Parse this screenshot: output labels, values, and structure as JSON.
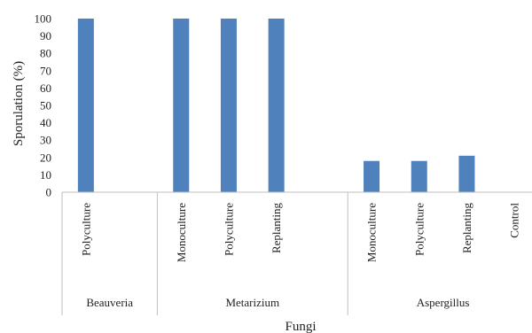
{
  "chart_data": {
    "type": "bar",
    "title": "",
    "xlabel": "Fungi",
    "ylabel": "Sporulation (%)",
    "ylim": [
      0,
      100
    ],
    "yticks": [
      0,
      10,
      20,
      30,
      40,
      50,
      60,
      70,
      80,
      90,
      100
    ],
    "grid": false,
    "legend": "none",
    "bar_color": "#4f81bd",
    "groups": [
      "Beauveria",
      "Metarizium",
      "Aspergillus"
    ],
    "categories": [
      {
        "group": "Beauveria",
        "label": "Polyculture"
      },
      {
        "group": "Beauveria",
        "label": ""
      },
      {
        "group": "Metarizium",
        "label": "Monoculture"
      },
      {
        "group": "Metarizium",
        "label": "Polyculture"
      },
      {
        "group": "Metarizium",
        "label": "Replanting"
      },
      {
        "group": "Metarizium",
        "label": ""
      },
      {
        "group": "Aspergillus",
        "label": "Monoculture"
      },
      {
        "group": "Aspergillus",
        "label": "Polyculture"
      },
      {
        "group": "Aspergillus",
        "label": "Replanting"
      },
      {
        "group": "Aspergillus",
        "label": "Control"
      }
    ],
    "values": [
      100,
      null,
      100,
      100,
      100,
      null,
      18,
      18,
      21,
      0
    ]
  }
}
